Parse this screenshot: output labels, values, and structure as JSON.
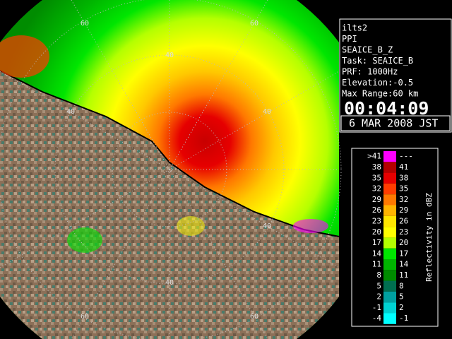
{
  "info": {
    "lines": [
      "ilts2",
      "PPI",
      "SEAICE_B_Z",
      "Task: SEAICE_B",
      "PRF: 1000Hz",
      "Elevation:-0.5",
      "Max Range:60 km"
    ],
    "time": "00:04:09",
    "date": "6 MAR 2008 JST"
  },
  "range_labels": [
    "60",
    "60",
    "40",
    "40",
    "40",
    "40",
    "40",
    "60",
    "60"
  ],
  "legend": {
    "title": "Reflectivity in dBZ",
    "rows": [
      {
        "low": ">41",
        "high": "---",
        "color": "#ff00ff"
      },
      {
        "low": "38",
        "high": "41",
        "color": "#b40000"
      },
      {
        "low": "35",
        "high": "38",
        "color": "#e60000"
      },
      {
        "low": "32",
        "high": "35",
        "color": "#ff3c00"
      },
      {
        "low": "29",
        "high": "32",
        "color": "#ff7800"
      },
      {
        "low": "26",
        "high": "29",
        "color": "#ffb400"
      },
      {
        "low": "23",
        "high": "26",
        "color": "#ffe600"
      },
      {
        "low": "20",
        "high": "23",
        "color": "#ffff00"
      },
      {
        "low": "17",
        "high": "20",
        "color": "#b4ff00"
      },
      {
        "low": "14",
        "high": "17",
        "color": "#00e600"
      },
      {
        "low": "11",
        "high": "14",
        "color": "#00b400"
      },
      {
        "low": "8",
        "high": "11",
        "color": "#008c00"
      },
      {
        "low": "5",
        "high": "8",
        "color": "#006e50"
      },
      {
        "low": "2",
        "high": "5",
        "color": "#00a0a0"
      },
      {
        "low": "-1",
        "high": "2",
        "color": "#00d2d2"
      },
      {
        "low": "-4",
        "high": "-1",
        "color": "#00ffff"
      }
    ]
  }
}
